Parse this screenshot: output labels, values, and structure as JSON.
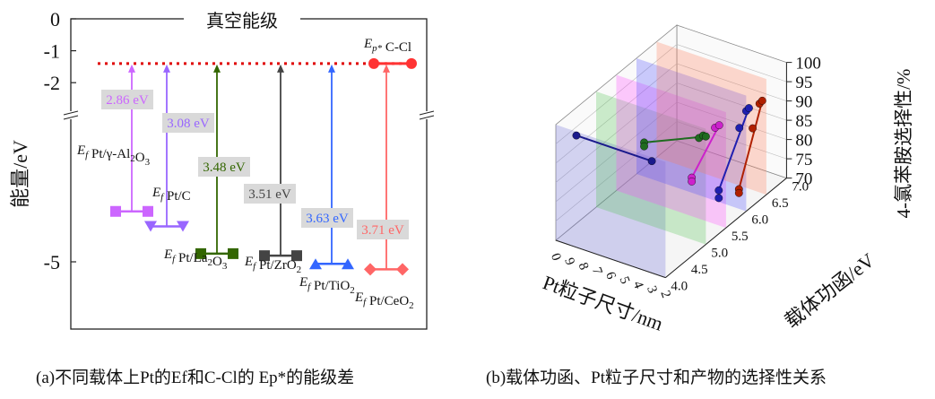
{
  "chart_data": [
    {
      "type": "diagram",
      "caption": "(a)不同载体上Pt的Ef和C-Cl的 Ep*的能级差",
      "ylabel": "能量/eV",
      "yticks": [
        "0",
        "-1",
        "-2",
        "-5"
      ],
      "vacuum_label": "真空能级",
      "ep_label": "Ep* C-Cl",
      "ep_level": -1.4,
      "levels": [
        {
          "label": "Ef Pt/γ-Al2O3",
          "gap": "2.86 eV",
          "energy": -4.26,
          "color": "#cc66ff",
          "marker": "square"
        },
        {
          "label": "Ef Pt/C",
          "gap": "3.08 eV",
          "energy": -4.48,
          "color": "#9966ff",
          "marker": "triangle-down"
        },
        {
          "label": "Ef Pt/La2O3",
          "gap": "3.48 eV",
          "energy": -4.88,
          "color": "#336600",
          "marker": "square"
        },
        {
          "label": "Ef Pt/ZrO2",
          "gap": "3.51 eV",
          "energy": -4.91,
          "color": "#444444",
          "marker": "square"
        },
        {
          "label": "Ef Pt/TiO2",
          "gap": "3.63 eV",
          "energy": -5.03,
          "color": "#3366ff",
          "marker": "triangle-up"
        },
        {
          "label": "Ef Pt/CeO2",
          "gap": "3.71 eV",
          "energy": -5.11,
          "color": "#ff6666",
          "marker": "diamond"
        }
      ]
    },
    {
      "type": "scatter3d",
      "caption": "(b)载体功函、Pt粒子尺寸和产物的选择性关系",
      "xlabel": "Pt粒子尺寸/nm",
      "ylabel": "载体功函/eV",
      "zlabel": "4-氯苯胺选择性/%",
      "xticks": [
        "0",
        "9",
        "8",
        "7",
        "6",
        "5",
        "4",
        "3",
        "2"
      ],
      "yticks": [
        "4.0",
        "4.5",
        "5.0",
        "5.5",
        "6.0",
        "6.5",
        "7.0"
      ],
      "zticks": [
        "70",
        "75",
        "80",
        "85",
        "90",
        "95",
        "100"
      ],
      "series": [
        {
          "color": "#1a1a8c",
          "points": [
            [
              8.5,
              4.0,
              99
            ],
            [
              3.0,
              4.0,
              99
            ]
          ]
        },
        {
          "color": "#1f6b1f",
          "points": [
            [
              6.5,
              5.0,
              91
            ],
            [
              6.5,
              5.0,
              90
            ],
            [
              2.5,
              5.0,
              97
            ],
            [
              2.2,
              5.0,
              98
            ],
            [
              2.0,
              5.0,
              98
            ]
          ]
        },
        {
          "color": "#cc22cc",
          "points": [
            [
              4.5,
              5.5,
              80
            ],
            [
              4.5,
              5.5,
              79
            ],
            [
              2.8,
              5.5,
              95
            ],
            [
              2.5,
              5.5,
              96
            ]
          ]
        },
        {
          "color": "#1f1fb0",
          "points": [
            [
              4.0,
              6.0,
              73
            ],
            [
              4.0,
              6.0,
              71
            ],
            [
              2.5,
              6.0,
              91
            ],
            [
              2.0,
              6.0,
              96
            ],
            [
              1.8,
              6.0,
              97
            ]
          ]
        },
        {
          "color": "#b02000",
          "points": [
            [
              4.0,
              6.5,
              69
            ],
            [
              4.0,
              6.5,
              68
            ],
            [
              3.0,
              6.5,
              86
            ],
            [
              2.5,
              6.5,
              93
            ],
            [
              2.3,
              6.5,
              94
            ]
          ]
        }
      ]
    }
  ]
}
